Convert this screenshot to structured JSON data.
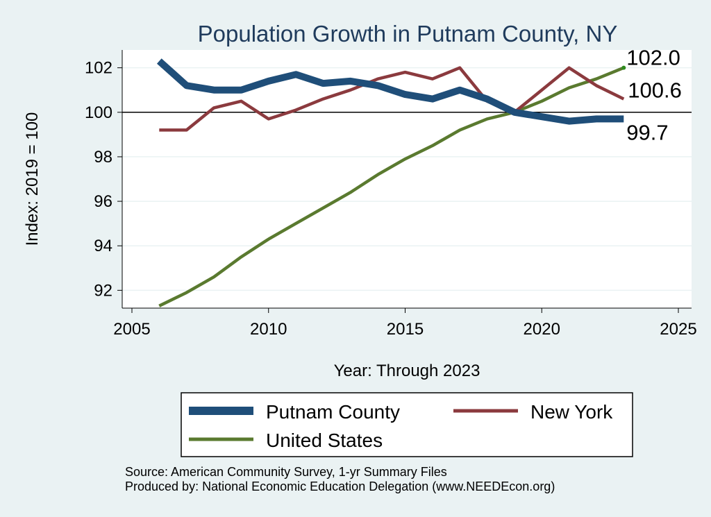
{
  "chart_data": {
    "type": "line",
    "title": "Population Growth in Putnam County, NY",
    "xlabel": "Year: Through 2023",
    "ylabel": "Index: 2019 = 100",
    "xlim": [
      2005,
      2025
    ],
    "ylim": [
      91.2,
      102.8
    ],
    "x_ticks": [
      2005,
      2010,
      2015,
      2020,
      2025
    ],
    "y_ticks": [
      92,
      94,
      96,
      98,
      100,
      102
    ],
    "reference_line": 100,
    "x": [
      2006,
      2007,
      2008,
      2009,
      2010,
      2011,
      2012,
      2013,
      2014,
      2015,
      2016,
      2017,
      2018,
      2019,
      2020,
      2021,
      2022,
      2023
    ],
    "series": [
      {
        "name": "United States",
        "color": "#5a7a2f",
        "values": [
          91.3,
          91.9,
          92.6,
          93.5,
          94.3,
          95.0,
          95.7,
          96.4,
          97.2,
          97.9,
          98.5,
          99.2,
          99.7,
          100.0,
          100.5,
          101.1,
          101.5,
          102.0
        ],
        "end_label": "102.0"
      },
      {
        "name": "New York",
        "color": "#8b3a3e",
        "values": [
          99.2,
          99.2,
          100.2,
          100.5,
          99.7,
          100.1,
          100.6,
          101.0,
          101.5,
          101.8,
          101.5,
          102.0,
          100.5,
          100.0,
          101.0,
          102.0,
          101.2,
          100.6
        ],
        "end_label": "100.6"
      },
      {
        "name": "Putnam  County",
        "color": "#1f4e79",
        "values": [
          102.3,
          101.2,
          101.0,
          101.0,
          101.4,
          101.7,
          101.3,
          101.4,
          101.2,
          100.8,
          100.6,
          101.0,
          100.6,
          100.0,
          99.8,
          99.6,
          99.7,
          99.7
        ],
        "end_label": "99.7"
      }
    ],
    "legend": {
      "position": "bottom",
      "entries": [
        "Putnam  County",
        "New York",
        "United States"
      ]
    }
  },
  "footer": {
    "source_line": "Source: American Community Survey, 1-yr Summary Files",
    "producer_line": "Produced by: National Economic Education Delegation (www.NEEDEcon.org)"
  },
  "colors": {
    "background": "#eaf2f3",
    "plot_background": "#ffffff",
    "title": "#1f3b5c",
    "us_end_marker": "#2e8b1e"
  }
}
